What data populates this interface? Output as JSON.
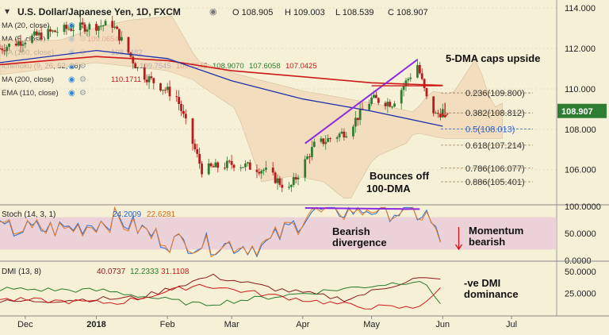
{
  "header": {
    "title": "U.S. Dollar/Japanese Yen, 1D, FXCM",
    "open": "O 108.905",
    "high": "H 109.003",
    "low": "L 108.539",
    "close": "C 108.907"
  },
  "indicator_labels": [
    {
      "label": "MA (20, close)"
    },
    {
      "label": "MA (5, close)",
      "value": "109.0654",
      "color": "#cc1a1a"
    },
    {
      "label": "MA (100, close)",
      "value": "108.1482",
      "color": "#1f2fa8"
    },
    {
      "label": "Ichimoku (9, 26, 52, 26)",
      "values": [
        {
          "v": "109.7545",
          "c": "#1f2fa8"
        },
        {
          "v": "109.7545",
          "c": "#8b1a1a"
        },
        {
          "v": "108.9070",
          "c": "#2a7a2a"
        },
        {
          "v": "107.6058",
          "c": "#2a7a2a"
        },
        {
          "v": "107.0425",
          "c": "#cc1a1a"
        }
      ]
    },
    {
      "label": "MA (200, close)",
      "value": "110.1711",
      "color": "#cc1a1a"
    },
    {
      "label": "EMA (110, close)"
    }
  ],
  "price_axis": {
    "ticks": [
      "114.000",
      "112.000",
      "110.000",
      "108.000",
      "106.000"
    ],
    "current": "108.907"
  },
  "fib_levels": [
    {
      "label": "0.236(109.800)",
      "value": 109.8,
      "color": "#333333"
    },
    {
      "label": "0.382(108.812)",
      "value": 108.812,
      "color": "#333333"
    },
    {
      "label": "0.5(108.013)",
      "value": 108.013,
      "color": "#2a5fd0"
    },
    {
      "label": "0.618(107.214)",
      "value": 107.214,
      "color": "#333333"
    },
    {
      "label": "0.786(106.077)",
      "value": 106.077,
      "color": "#333333"
    },
    {
      "label": "0.886(105.401)",
      "value": 105.401,
      "color": "#333333"
    }
  ],
  "annotations": {
    "dma5": "5-DMA caps upside",
    "bounce1": "Bounces off",
    "bounce2": "100-DMA",
    "bearish1": "Bearish",
    "bearish2": "divergence",
    "momentum1": "Momentum",
    "momentum2": "bearish",
    "dmi1": "-ve DMI",
    "dmi2": "dominance"
  },
  "stoch": {
    "label": "Stoch (14, 3, 1)",
    "k": "24.2009",
    "d": "22.6281",
    "ticks": [
      "100.0000",
      "50.0000",
      "0.0000"
    ]
  },
  "dmi": {
    "label": "DMI (13, 8)",
    "adx": "40.0737",
    "plus_di": "12.2333",
    "minus_di": "31.1108",
    "ticks": [
      "50.0000",
      "25.0000"
    ]
  },
  "x_axis": [
    "Dec",
    "2018",
    "Feb",
    "Mar",
    "Apr",
    "May",
    "Jun",
    "Jul"
  ],
  "colors": {
    "background": "#f6f0d6",
    "up": "#2e7d32",
    "down": "#b71c1c",
    "ma5": "#cc1a1a",
    "ma100": "#1f2fa8",
    "trend": "#8a2be2",
    "stoch_band": "#e8c9d8"
  },
  "chart_data": {
    "type": "candlestick",
    "title": "U.S. Dollar/Japanese Yen, 1D, FXCM",
    "ylim": [
      104.3,
      114.4
    ],
    "x_range": [
      "2017-11-20",
      "2018-07-20"
    ],
    "anchors": [
      [
        "2017-11-20",
        112.0
      ],
      [
        "2017-12-05",
        112.6
      ],
      [
        "2017-12-20",
        113.0
      ],
      [
        "2018-01-08",
        113.2
      ],
      [
        "2018-01-20",
        110.8
      ],
      [
        "2018-02-05",
        109.6
      ],
      [
        "2018-02-16",
        106.0
      ],
      [
        "2018-03-02",
        106.3
      ],
      [
        "2018-03-15",
        106.0
      ],
      [
        "2018-03-26",
        105.0
      ],
      [
        "2018-04-06",
        107.2
      ],
      [
        "2018-04-20",
        107.9
      ],
      [
        "2018-05-01",
        109.5
      ],
      [
        "2018-05-10",
        109.3
      ],
      [
        "2018-05-21",
        111.2
      ],
      [
        "2018-05-25",
        109.5
      ],
      [
        "2018-05-29",
        108.7
      ],
      [
        "2018-06-01",
        108.9
      ]
    ],
    "ma100": [
      [
        "2017-11-20",
        111.3
      ],
      [
        "2018-01-01",
        111.9
      ],
      [
        "2018-02-01",
        111.5
      ],
      [
        "2018-03-01",
        110.4
      ],
      [
        "2018-04-01",
        109.5
      ],
      [
        "2018-05-01",
        108.9
      ],
      [
        "2018-06-01",
        108.15
      ]
    ],
    "ma200": [
      [
        "2017-11-20",
        111.2
      ],
      [
        "2018-01-01",
        111.6
      ],
      [
        "2018-02-01",
        111.4
      ],
      [
        "2018-03-01",
        110.9
      ],
      [
        "2018-04-01",
        110.6
      ],
      [
        "2018-05-01",
        110.3
      ],
      [
        "2018-06-01",
        110.17
      ]
    ],
    "trendline": [
      [
        "2018-04-02",
        107.3
      ],
      [
        "2018-05-21",
        111.45
      ]
    ],
    "dma5_cap": [
      [
        "2018-05-01",
        110.15
      ],
      [
        "2018-06-01",
        110.15
      ]
    ],
    "stoch_ylim": [
      0,
      100
    ],
    "stoch_band": [
      20,
      80
    ],
    "stoch_k": [
      [
        "2017-11-20",
        55
      ],
      [
        "2017-12-20",
        60
      ],
      [
        "2018-01-10",
        78
      ],
      [
        "2018-02-01",
        35
      ],
      [
        "2018-02-20",
        30
      ],
      [
        "2018-03-15",
        25
      ],
      [
        "2018-04-05",
        90
      ],
      [
        "2018-05-01",
        95
      ],
      [
        "2018-05-25",
        85
      ],
      [
        "2018-06-01",
        24.2
      ]
    ],
    "stoch_divergence": [
      [
        "2018-04-02",
        97
      ],
      [
        "2018-05-22",
        95
      ]
    ],
    "dmi_ylim": [
      0,
      60
    ],
    "adx": [
      [
        "2017-11-20",
        15
      ],
      [
        "2018-01-20",
        20
      ],
      [
        "2018-02-20",
        45
      ],
      [
        "2018-03-20",
        30
      ],
      [
        "2018-04-20",
        18
      ],
      [
        "2018-05-20",
        42
      ],
      [
        "2018-06-01",
        40.07
      ]
    ],
    "plus_di": [
      [
        "2017-11-20",
        30
      ],
      [
        "2018-01-05",
        28
      ],
      [
        "2018-02-15",
        12
      ],
      [
        "2018-03-15",
        20
      ],
      [
        "2018-04-25",
        32
      ],
      [
        "2018-05-22",
        40
      ],
      [
        "2018-06-01",
        12.23
      ]
    ],
    "minus_di": [
      [
        "2017-11-20",
        18
      ],
      [
        "2018-01-10",
        14
      ],
      [
        "2018-02-15",
        35
      ],
      [
        "2018-03-20",
        22
      ],
      [
        "2018-04-25",
        10
      ],
      [
        "2018-05-20",
        8
      ],
      [
        "2018-06-01",
        31.11
      ]
    ]
  }
}
